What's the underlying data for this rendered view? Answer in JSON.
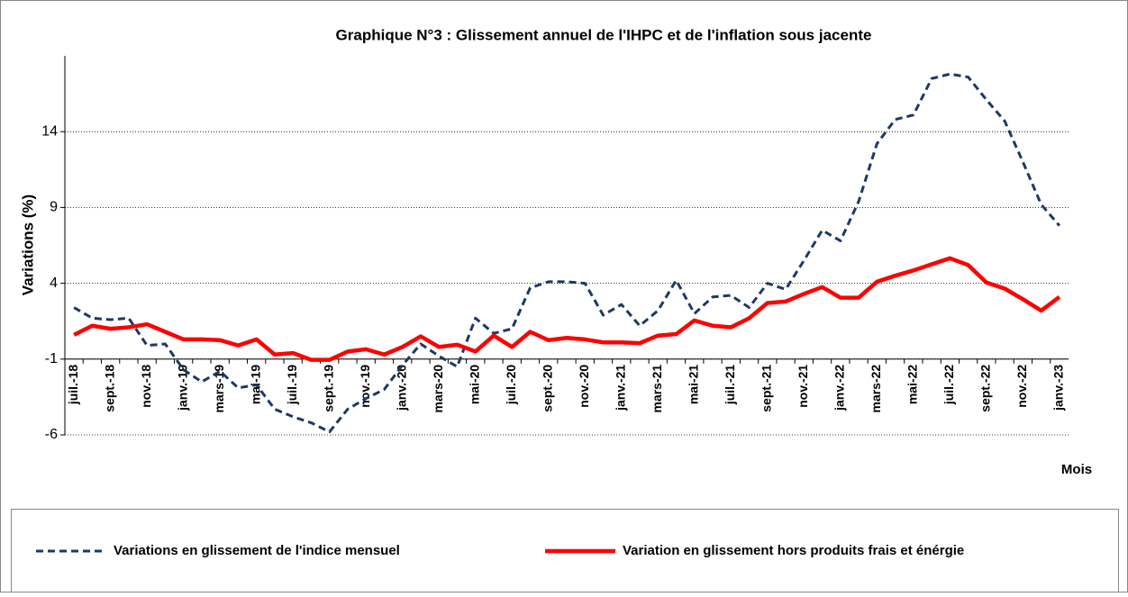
{
  "chart_data": {
    "type": "line",
    "title": "Graphique N°3 : Glissement annuel de l'IHPC et de l'inflation sous jacente",
    "y_label": "Variations (%)",
    "x_label": "Mois",
    "categories": [
      "juil.-18",
      null,
      "sept.-18",
      null,
      "nov.-18",
      null,
      "janv.-19",
      null,
      "mars-19",
      null,
      "mai-19",
      null,
      "juil.-19",
      null,
      "sept.-19",
      null,
      "nov.-19",
      null,
      "janv.-20",
      null,
      "mars-20",
      null,
      "mai-20",
      null,
      "juil.-20",
      null,
      "sept.-20",
      null,
      "nov.-20",
      null,
      "janv.-21",
      null,
      "mars-21",
      null,
      "mai-21",
      null,
      "juil.-21",
      null,
      "sept.-21",
      null,
      "nov.-21",
      null,
      "janv.-22",
      null,
      "mars-22",
      null,
      "mai-22",
      null,
      "juil.-22",
      null,
      "sept.-22",
      null,
      "nov.-22",
      null,
      "janv.-23"
    ],
    "series": [
      {
        "name": "Variations en glissement de l'indice mensuel",
        "color": "#1f3864",
        "dash": true,
        "values": [
          2.4,
          1.7,
          1.6,
          1.7,
          -0.1,
          0.0,
          -1.7,
          -2.5,
          -1.8,
          -2.9,
          -2.7,
          -4.3,
          -4.8,
          -5.2,
          -5.8,
          -4.3,
          -3.6,
          -3.0,
          -1.4,
          0.0,
          -0.8,
          -1.5,
          1.7,
          0.7,
          1.0,
          3.7,
          4.1,
          4.1,
          4.0,
          1.9,
          2.6,
          1.2,
          2.2,
          4.2,
          2.0,
          3.1,
          3.2,
          2.4,
          4.0,
          3.6,
          5.5,
          7.5,
          6.8,
          9.4,
          13.2,
          14.8,
          15.1,
          17.5,
          17.8,
          17.6,
          16.1,
          14.7,
          12.0,
          9.2,
          7.8
        ]
      },
      {
        "name": "Variation en glissement hors produits frais et énérgie",
        "color": "#ff0000",
        "dash": false,
        "values": [
          0.6,
          1.2,
          1.0,
          1.1,
          1.3,
          0.8,
          0.3,
          0.3,
          0.25,
          -0.1,
          0.3,
          -0.7,
          -0.6,
          -1.05,
          -1.05,
          -0.5,
          -0.35,
          -0.7,
          -0.2,
          0.5,
          -0.2,
          -0.05,
          -0.5,
          0.55,
          -0.2,
          0.8,
          0.25,
          0.4,
          0.3,
          0.1,
          0.1,
          0.05,
          0.55,
          0.65,
          1.55,
          1.2,
          1.1,
          1.7,
          2.7,
          2.8,
          3.3,
          3.75,
          3.05,
          3.05,
          4.1,
          4.5,
          4.85,
          5.25,
          5.65,
          5.2,
          4.05,
          3.65,
          2.95,
          2.2,
          3.1
        ]
      }
    ],
    "ylim": [
      -6,
      19
    ],
    "yticks": [
      -6,
      -1,
      4,
      9,
      14
    ],
    "x_axis_crosses_at": -1,
    "grid": true,
    "legend": "bottom"
  }
}
